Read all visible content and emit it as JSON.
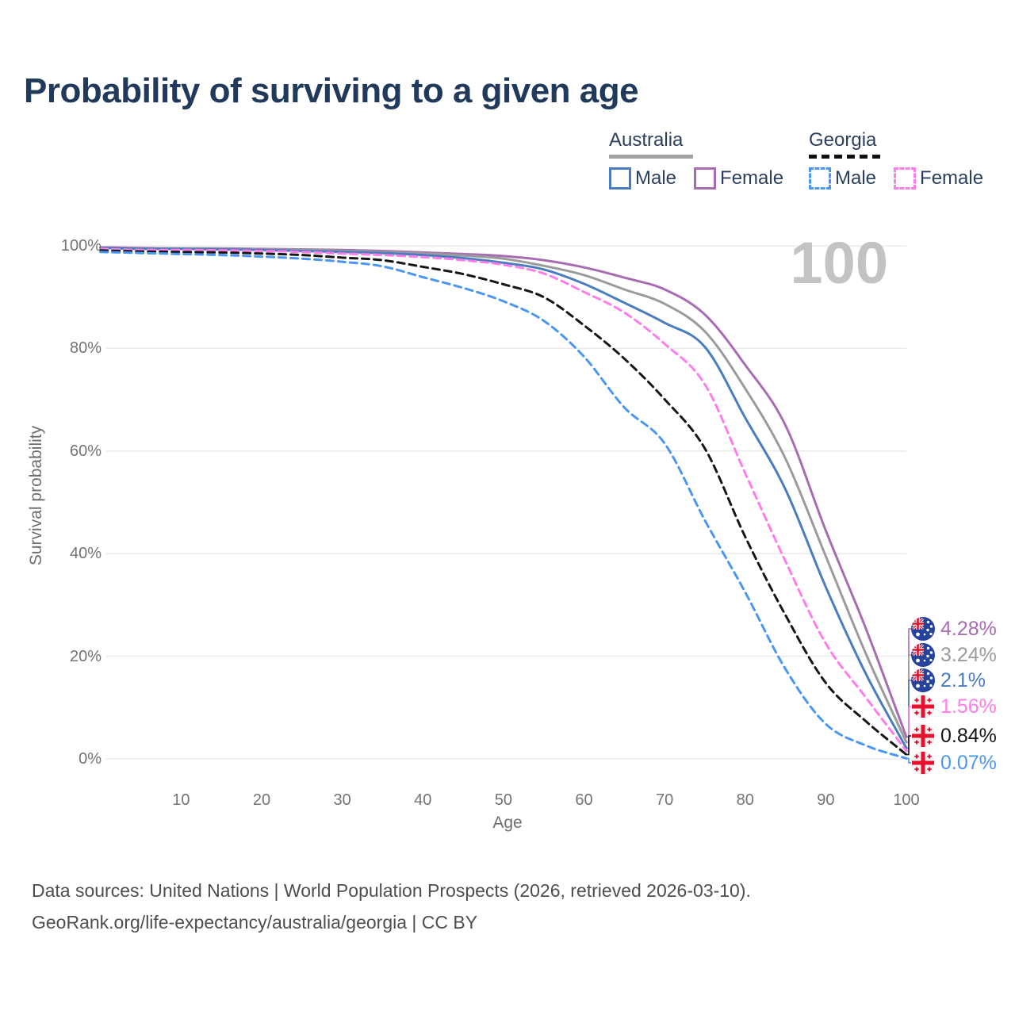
{
  "title": "Probability of surviving to a given age",
  "watermark": "100",
  "legend": {
    "groups": [
      {
        "label": "Australia",
        "line_style": "solid",
        "line_color": "#a2a2a2",
        "items": [
          {
            "label": "Male",
            "color": "#4a7dc0",
            "dashed": false
          },
          {
            "label": "Female",
            "color": "#a86cb3",
            "dashed": false
          }
        ]
      },
      {
        "label": "Georgia",
        "line_style": "dashed",
        "line_color": "#111111",
        "items": [
          {
            "label": "Male",
            "color": "#4a96f0",
            "dashed": true
          },
          {
            "label": "Female",
            "color": "#ff7de9",
            "dashed": true
          }
        ]
      }
    ]
  },
  "chart_data": {
    "type": "line",
    "title": "Probability of surviving to a given age",
    "xlabel": "Age",
    "ylabel": "Survival probability",
    "xlim": [
      0,
      100
    ],
    "ylim": [
      0,
      100
    ],
    "grid": "horizontal",
    "legend_position": "top-right",
    "x_ticks": [
      10,
      20,
      30,
      40,
      50,
      60,
      70,
      80,
      90,
      100
    ],
    "y_ticks": [
      {
        "value": 0,
        "label": "0%"
      },
      {
        "value": 20,
        "label": "20%"
      },
      {
        "value": 40,
        "label": "40%"
      },
      {
        "value": 60,
        "label": "60%"
      },
      {
        "value": 80,
        "label": "80%"
      },
      {
        "value": 100,
        "label": "100%"
      }
    ],
    "ages": [
      0,
      5,
      10,
      15,
      20,
      25,
      30,
      35,
      40,
      45,
      50,
      55,
      60,
      65,
      70,
      75,
      80,
      85,
      90,
      95,
      100
    ],
    "series": [
      {
        "id": "australia-female",
        "name": "Australia Female",
        "country": "Australia",
        "sex": "Female",
        "color": "#a86cb3",
        "dash": "solid",
        "flag": "australia",
        "end_label": "4.28%",
        "values": [
          99.7,
          99.6,
          99.5,
          99.5,
          99.4,
          99.3,
          99.2,
          99.0,
          98.7,
          98.4,
          98.0,
          97.2,
          95.8,
          93.8,
          91.5,
          86.6,
          76.8,
          65.0,
          44.5,
          25.3,
          4.28
        ]
      },
      {
        "id": "australia-total",
        "name": "Australia",
        "country": "Australia",
        "sex": "Both",
        "color": "#9b9b9b",
        "dash": "solid",
        "flag": "australia",
        "end_label": "3.24%",
        "values": [
          99.6,
          99.5,
          99.5,
          99.4,
          99.3,
          99.2,
          99.0,
          98.8,
          98.5,
          98.1,
          97.5,
          96.1,
          94.3,
          91.5,
          88.7,
          83.3,
          72.2,
          58.5,
          39.5,
          20.4,
          3.24
        ]
      },
      {
        "id": "australia-male",
        "name": "Australia Male",
        "country": "Australia",
        "sex": "Male",
        "color": "#4a7dc0",
        "dash": "solid",
        "flag": "australia",
        "end_label": "2.1%",
        "values": [
          99.6,
          99.4,
          99.4,
          99.3,
          99.2,
          99.0,
          98.8,
          98.6,
          98.2,
          97.6,
          96.7,
          95.4,
          92.6,
          88.9,
          85.0,
          80.3,
          66.5,
          52.5,
          33.5,
          16.5,
          2.1
        ]
      },
      {
        "id": "georgia-female",
        "name": "Georgia Female",
        "country": "Georgia",
        "sex": "Female",
        "color": "#ff7de9",
        "dash": "dashed",
        "flag": "georgia",
        "end_label": "1.56%",
        "values": [
          99.4,
          99.2,
          99.2,
          99.1,
          99.0,
          98.8,
          98.5,
          98.2,
          97.8,
          97.2,
          96.3,
          94.6,
          91.0,
          87.0,
          80.9,
          73.0,
          55.7,
          38.5,
          22.5,
          11.9,
          1.56
        ]
      },
      {
        "id": "georgia-total",
        "name": "Georgia",
        "country": "Georgia",
        "sex": "Both",
        "color": "#161616",
        "dash": "dashed",
        "flag": "georgia",
        "end_label": "0.84%",
        "values": [
          99.1,
          98.9,
          98.8,
          98.7,
          98.5,
          98.2,
          97.7,
          97.2,
          95.9,
          94.5,
          92.5,
          90.0,
          84.5,
          78.0,
          70.1,
          60.5,
          43.3,
          28.0,
          14.8,
          7.3,
          0.84
        ]
      },
      {
        "id": "georgia-male",
        "name": "Georgia Male",
        "country": "Georgia",
        "sex": "Male",
        "color": "#4a96f0",
        "dash": "dashed",
        "flag": "georgia",
        "end_label": "0.07%",
        "values": [
          98.8,
          98.6,
          98.4,
          98.2,
          97.9,
          97.5,
          96.9,
          96.0,
          93.9,
          91.8,
          89.2,
          85.4,
          78.4,
          68.5,
          61.5,
          46.5,
          32.5,
          17.5,
          6.8,
          2.6,
          0.07
        ]
      }
    ]
  },
  "footer": {
    "line1": "Data sources: United Nations | World Population Prospects (2026, retrieved 2026-03-10).",
    "line2": "GeoRank.org/life-expectancy/australia/georgia | CC BY"
  },
  "colors": {
    "title_text": "#213a5c",
    "axis_text": "#737373",
    "gridline": "#ebebeb",
    "watermark": "#c3c3c3",
    "footer_text": "#4e4e4e",
    "australia_flag_blue": "#25439c",
    "georgia_flag_red": "#e8112d"
  }
}
